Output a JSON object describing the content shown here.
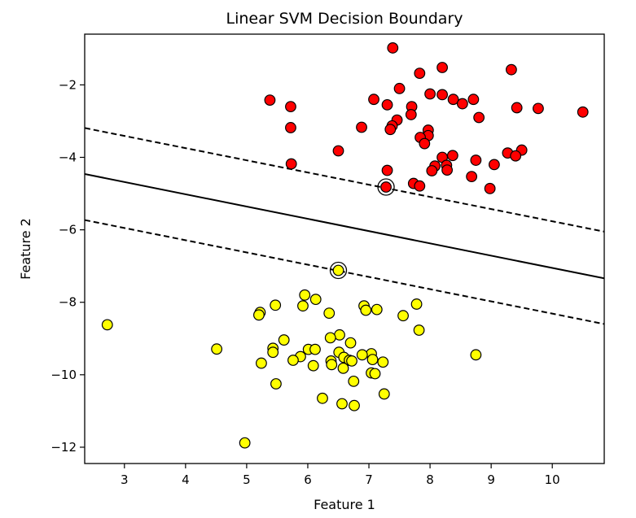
{
  "chart_data": {
    "type": "scatter",
    "title": "Linear SVM Decision Boundary",
    "xlabel": "Feature 1",
    "ylabel": "Feature 2",
    "xlim": [
      2.35,
      10.85
    ],
    "ylim": [
      -12.45,
      -0.6
    ],
    "xticks": [
      3,
      4,
      5,
      6,
      7,
      8,
      9,
      10
    ],
    "yticks": [
      -12,
      -10,
      -8,
      -6,
      -4,
      -2
    ],
    "xtick_labels": [
      "3",
      "4",
      "5",
      "6",
      "7",
      "8",
      "9",
      "10"
    ],
    "ytick_labels": [
      "−12",
      "−10",
      "−8",
      "−6",
      "−4",
      "−2"
    ],
    "grid": false,
    "legend": "none",
    "series": [
      {
        "color": "#ff0000",
        "points": [
          [
            7.39,
            -0.98
          ],
          [
            8.2,
            -1.52
          ],
          [
            9.33,
            -1.58
          ],
          [
            7.83,
            -1.68
          ],
          [
            7.5,
            -2.1
          ],
          [
            8.0,
            -2.25
          ],
          [
            8.2,
            -2.27
          ],
          [
            8.38,
            -2.4
          ],
          [
            8.71,
            -2.4
          ],
          [
            7.08,
            -2.4
          ],
          [
            5.38,
            -2.42
          ],
          [
            8.53,
            -2.52
          ],
          [
            7.3,
            -2.55
          ],
          [
            5.72,
            -2.6
          ],
          [
            9.42,
            -2.63
          ],
          [
            9.77,
            -2.65
          ],
          [
            7.7,
            -2.6
          ],
          [
            10.5,
            -2.75
          ],
          [
            7.69,
            -2.82
          ],
          [
            7.46,
            -2.97
          ],
          [
            8.8,
            -2.9
          ],
          [
            7.38,
            -3.13
          ],
          [
            5.72,
            -3.18
          ],
          [
            6.88,
            -3.17
          ],
          [
            7.35,
            -3.23
          ],
          [
            7.97,
            -3.25
          ],
          [
            7.97,
            -3.4
          ],
          [
            7.84,
            -3.45
          ],
          [
            7.91,
            -3.62
          ],
          [
            6.5,
            -3.82
          ],
          [
            9.5,
            -3.8
          ],
          [
            9.27,
            -3.88
          ],
          [
            9.4,
            -3.96
          ],
          [
            8.37,
            -3.95
          ],
          [
            8.2,
            -4.0
          ],
          [
            8.75,
            -4.08
          ],
          [
            8.27,
            -4.22
          ],
          [
            8.08,
            -4.24
          ],
          [
            5.73,
            -4.18
          ],
          [
            9.05,
            -4.2
          ],
          [
            8.28,
            -4.35
          ],
          [
            8.03,
            -4.37
          ],
          [
            7.3,
            -4.36
          ],
          [
            8.68,
            -4.53
          ],
          [
            7.73,
            -4.72
          ],
          [
            7.83,
            -4.79
          ],
          [
            8.98,
            -4.86
          ],
          [
            7.28,
            -4.82
          ]
        ]
      },
      {
        "color": "#ffff00",
        "points": [
          [
            6.5,
            -7.12
          ],
          [
            5.95,
            -7.8
          ],
          [
            6.13,
            -7.92
          ],
          [
            5.47,
            -8.08
          ],
          [
            5.92,
            -8.1
          ],
          [
            7.78,
            -8.05
          ],
          [
            6.92,
            -8.1
          ],
          [
            7.13,
            -8.2
          ],
          [
            6.95,
            -8.22
          ],
          [
            5.22,
            -8.28
          ],
          [
            5.2,
            -8.35
          ],
          [
            6.35,
            -8.3
          ],
          [
            7.56,
            -8.37
          ],
          [
            2.72,
            -8.62
          ],
          [
            7.82,
            -8.77
          ],
          [
            6.52,
            -8.9
          ],
          [
            6.37,
            -8.98
          ],
          [
            5.61,
            -9.04
          ],
          [
            6.7,
            -9.12
          ],
          [
            4.51,
            -9.29
          ],
          [
            5.43,
            -9.27
          ],
          [
            6.01,
            -9.3
          ],
          [
            6.12,
            -9.3
          ],
          [
            5.43,
            -9.38
          ],
          [
            6.51,
            -9.38
          ],
          [
            7.04,
            -9.42
          ],
          [
            6.89,
            -9.45
          ],
          [
            8.75,
            -9.45
          ],
          [
            5.88,
            -9.5
          ],
          [
            6.59,
            -9.52
          ],
          [
            5.76,
            -9.6
          ],
          [
            6.38,
            -9.62
          ],
          [
            6.68,
            -9.6
          ],
          [
            6.72,
            -9.62
          ],
          [
            7.06,
            -9.58
          ],
          [
            7.23,
            -9.65
          ],
          [
            5.24,
            -9.68
          ],
          [
            6.39,
            -9.72
          ],
          [
            6.09,
            -9.75
          ],
          [
            6.58,
            -9.82
          ],
          [
            7.04,
            -9.95
          ],
          [
            7.1,
            -9.97
          ],
          [
            6.75,
            -10.18
          ],
          [
            5.48,
            -10.25
          ],
          [
            7.25,
            -10.53
          ],
          [
            6.24,
            -10.65
          ],
          [
            6.56,
            -10.8
          ],
          [
            6.76,
            -10.85
          ],
          [
            4.97,
            -11.88
          ]
        ]
      }
    ],
    "support_vectors": [
      [
        7.28,
        -4.82
      ],
      [
        6.5,
        -7.12
      ]
    ],
    "lines": [
      {
        "role": "decision-boundary",
        "style": "solid",
        "x": [
          2.35,
          10.85
        ],
        "y": [
          -4.46,
          -7.34
        ]
      },
      {
        "role": "margin",
        "style": "dashed",
        "x": [
          2.35,
          10.85
        ],
        "y": [
          -3.19,
          -6.05
        ]
      },
      {
        "role": "margin",
        "style": "dashed",
        "x": [
          2.35,
          10.85
        ],
        "y": [
          -5.73,
          -8.6
        ]
      }
    ]
  }
}
